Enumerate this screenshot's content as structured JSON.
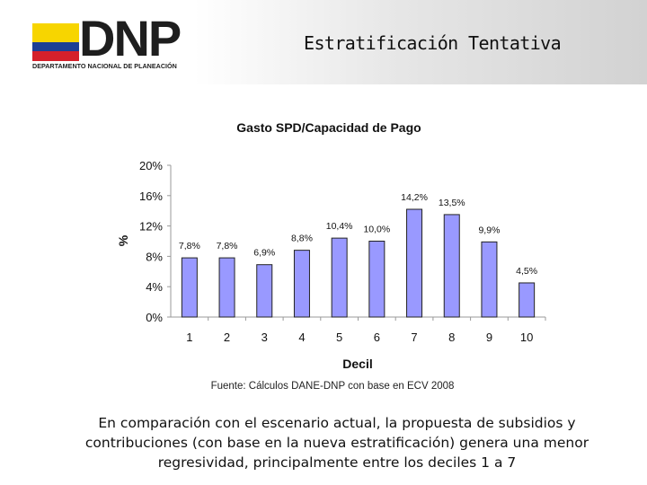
{
  "header": {
    "logo_name": "DNP",
    "logo_subtitle": "DEPARTAMENTO NACIONAL DE PLANEACIÓN",
    "title": "Estratificación Tentativa"
  },
  "chart_data": {
    "type": "bar",
    "title": "Gasto SPD/Capacidad de Pago",
    "xlabel": "Decil",
    "ylabel": "%",
    "categories": [
      "1",
      "2",
      "3",
      "4",
      "5",
      "6",
      "7",
      "8",
      "9",
      "10"
    ],
    "values": [
      7.8,
      7.8,
      6.9,
      8.8,
      10.4,
      10.0,
      14.2,
      13.5,
      9.9,
      4.5
    ],
    "value_labels": [
      "7,8%",
      "7,8%",
      "6,9%",
      "8,8%",
      "10,4%",
      "10,0%",
      "14,2%",
      "13,5%",
      "9,9%",
      "4,5%"
    ],
    "ylim": [
      0,
      20
    ],
    "yticks": [
      0,
      4,
      8,
      12,
      16,
      20
    ],
    "ytick_labels": [
      "0%",
      "4%",
      "8%",
      "12%",
      "16%",
      "20%"
    ],
    "grid": false,
    "bar_color": "#9999ff"
  },
  "source": {
    "label": "Fuente",
    "text": ": Cálculos DANE-DNP con base en ECV 2008"
  },
  "caption": "En comparación con el escenario actual, la propuesta de subsidios y contribuciones (con base en la nueva estratificación) genera una menor regresividad, principalmente entre los deciles 1 a 7"
}
